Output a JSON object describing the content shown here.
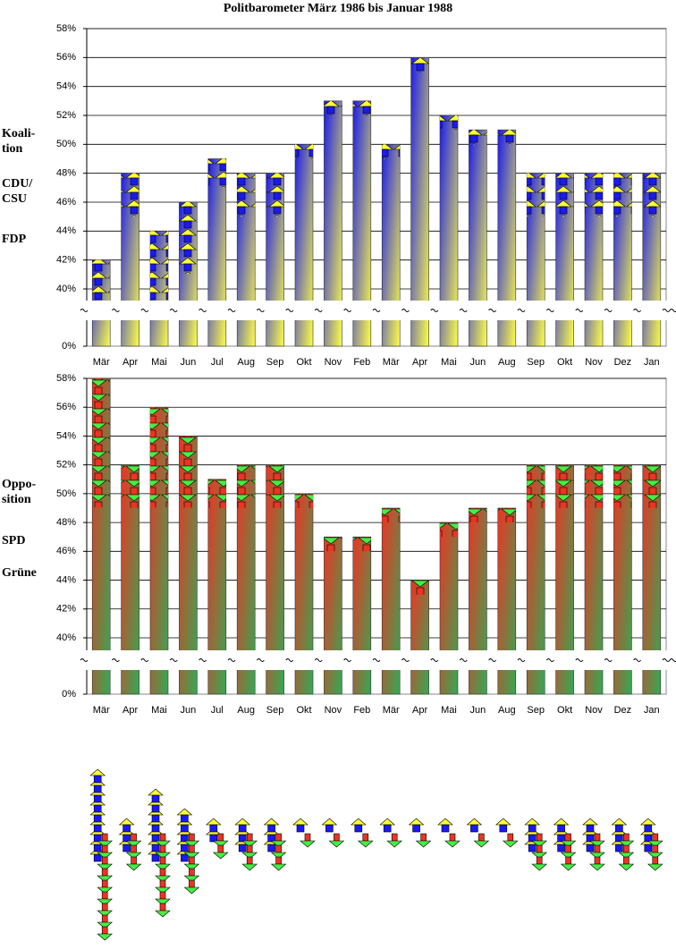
{
  "chart_data": [
    {
      "type": "bar",
      "title": "Politbarometer März 1986 bis Januar 1988",
      "side_labels": [
        [
          "Koali-",
          "tion"
        ],
        [
          "CDU/",
          "CSU"
        ],
        [
          "FDP"
        ]
      ],
      "categories": [
        "Mär",
        "Apr",
        "Mai",
        "Jun",
        "Jul",
        "Aug",
        "Sep",
        "Okt",
        "Nov",
        "Feb",
        "Mär",
        "Apr",
        "Mai",
        "Jun",
        "Aug",
        "Sep",
        "Okt",
        "Nov",
        "Dez",
        "Jan"
      ],
      "values": [
        42,
        48,
        44,
        46,
        49,
        48,
        48,
        50,
        53,
        53,
        50,
        56,
        52,
        51,
        51,
        48,
        48,
        48,
        48,
        48
      ],
      "colors": [
        "#1a1aee",
        "#ffff44"
      ],
      "ylim": [
        40,
        58
      ],
      "yticks": [
        {
          "value": 0,
          "label": "0%"
        },
        {
          "value": 40,
          "label": "40%"
        },
        {
          "value": 42,
          "label": "42%"
        },
        {
          "value": 44,
          "label": "44%"
        },
        {
          "value": 46,
          "label": "46%"
        },
        {
          "value": 48,
          "label": "48%"
        },
        {
          "value": 50,
          "label": "50%"
        },
        {
          "value": 52,
          "label": "52%"
        },
        {
          "value": 54,
          "label": "54%"
        },
        {
          "value": 56,
          "label": "56%"
        },
        {
          "value": 58,
          "label": "58%"
        }
      ],
      "axis_break": true,
      "grid": true
    },
    {
      "type": "bar",
      "side_labels": [
        [
          "Oppo-",
          "sition"
        ],
        [
          "SPD"
        ],
        [
          "Grüne"
        ]
      ],
      "categories": [
        "Mär",
        "Apr",
        "Mai",
        "Jun",
        "Jul",
        "Aug",
        "Sep",
        "Okt",
        "Nov",
        "Feb",
        "Mär",
        "Apr",
        "Mai",
        "Jun",
        "Aug",
        "Sep",
        "Okt",
        "Nov",
        "Dez",
        "Jan"
      ],
      "values": [
        58,
        52,
        56,
        54,
        51,
        52,
        52,
        50,
        47,
        47,
        49,
        44,
        48,
        49,
        49,
        52,
        52,
        52,
        52,
        52
      ],
      "colors": [
        "#ee3322",
        "#33aa55"
      ],
      "ylim": [
        40,
        58
      ],
      "yticks": [
        {
          "value": 0,
          "label": "0%"
        },
        {
          "value": 40,
          "label": "40%"
        },
        {
          "value": 42,
          "label": "42%"
        },
        {
          "value": 44,
          "label": "44%"
        },
        {
          "value": 46,
          "label": "46%"
        },
        {
          "value": 48,
          "label": "48%"
        },
        {
          "value": 50,
          "label": "50%"
        },
        {
          "value": 52,
          "label": "52%"
        },
        {
          "value": 54,
          "label": "54%"
        },
        {
          "value": 56,
          "label": "56%"
        },
        {
          "value": 58,
          "label": "58%"
        }
      ],
      "axis_break": true,
      "grid": true
    }
  ]
}
